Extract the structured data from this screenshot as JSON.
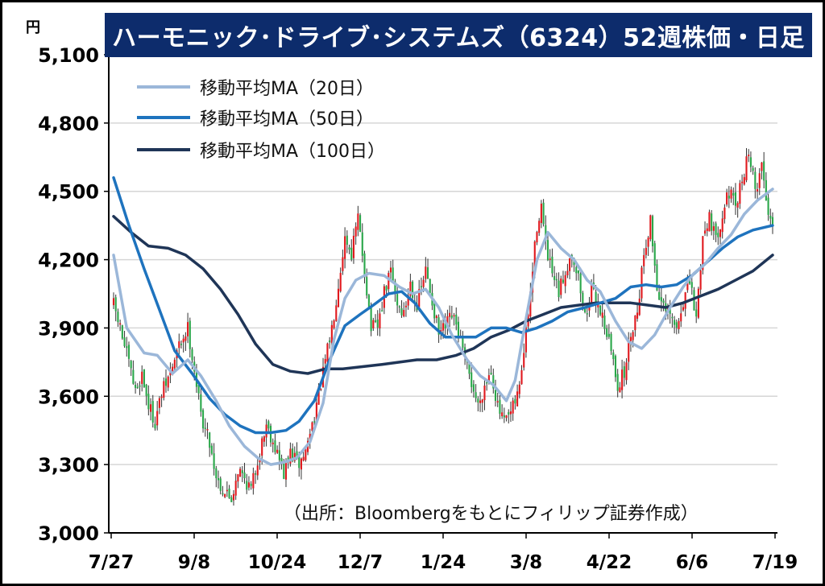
{
  "chart_data": {
    "type": "candlestick",
    "title": "ハーモニック･ドライブ･システムズ（6324）52週株価・日足",
    "unit_label": "円",
    "source_note": "（出所：Bloombergをもとにフィリップ証券作成）",
    "ylim": [
      3000,
      5100
    ],
    "yticks": [
      "3,000",
      "3,300",
      "3,600",
      "3,900",
      "4,200",
      "4,500",
      "4,800",
      "5,100"
    ],
    "ytick_values": [
      3000,
      3300,
      3600,
      3900,
      4200,
      4500,
      4800,
      5100
    ],
    "xticks": [
      "7/27",
      "9/8",
      "10/24",
      "12/7",
      "1/24",
      "3/8",
      "4/22",
      "6/6",
      "7/19"
    ],
    "grid": true,
    "legend_position": "top-left",
    "colors": {
      "up": "#e0191e",
      "down": "#2aa74a",
      "ma20": "#9bb7d9",
      "ma50": "#1e73be",
      "ma100": "#1f3557",
      "title_bg": "#0d2c6c"
    },
    "legend": [
      {
        "key": "ma20",
        "label": "移動平均MA（20日）"
      },
      {
        "key": "ma50",
        "label": "移動平均MA（50日）"
      },
      {
        "key": "ma100",
        "label": "移動平均MA（100日）"
      }
    ],
    "price_path": [
      [
        0,
        4000
      ],
      [
        3,
        3900
      ],
      [
        6,
        3780
      ],
      [
        10,
        3620
      ],
      [
        13,
        3700
      ],
      [
        16,
        3560
      ],
      [
        19,
        3490
      ],
      [
        22,
        3610
      ],
      [
        26,
        3700
      ],
      [
        30,
        3820
      ],
      [
        34,
        3900
      ],
      [
        37,
        3720
      ],
      [
        40,
        3520
      ],
      [
        44,
        3400
      ],
      [
        47,
        3250
      ],
      [
        50,
        3190
      ],
      [
        54,
        3150
      ],
      [
        57,
        3280
      ],
      [
        60,
        3240
      ],
      [
        63,
        3190
      ],
      [
        66,
        3320
      ],
      [
        70,
        3480
      ],
      [
        74,
        3380
      ],
      [
        78,
        3260
      ],
      [
        81,
        3350
      ],
      [
        85,
        3300
      ],
      [
        88,
        3360
      ],
      [
        92,
        3520
      ],
      [
        96,
        3700
      ],
      [
        100,
        3900
      ],
      [
        103,
        4100
      ],
      [
        106,
        4300
      ],
      [
        109,
        4230
      ],
      [
        112,
        4380
      ],
      [
        115,
        4150
      ],
      [
        118,
        3900
      ],
      [
        121,
        3900
      ],
      [
        124,
        4050
      ],
      [
        127,
        4150
      ],
      [
        130,
        4010
      ],
      [
        133,
        3960
      ],
      [
        136,
        4100
      ],
      [
        139,
        4000
      ],
      [
        143,
        4150
      ],
      [
        146,
        4020
      ],
      [
        149,
        3870
      ],
      [
        152,
        3900
      ],
      [
        155,
        3950
      ],
      [
        158,
        3880
      ],
      [
        161,
        3750
      ],
      [
        164,
        3660
      ],
      [
        167,
        3560
      ],
      [
        170,
        3650
      ],
      [
        173,
        3720
      ],
      [
        176,
        3550
      ],
      [
        179,
        3480
      ],
      [
        182,
        3520
      ],
      [
        185,
        3600
      ],
      [
        188,
        3790
      ],
      [
        191,
        4050
      ],
      [
        194,
        4350
      ],
      [
        196,
        4440
      ],
      [
        198,
        4250
      ],
      [
        201,
        4130
      ],
      [
        204,
        4050
      ],
      [
        207,
        4150
      ],
      [
        210,
        4230
      ],
      [
        213,
        4120
      ],
      [
        216,
        3950
      ],
      [
        219,
        4060
      ],
      [
        222,
        4010
      ],
      [
        225,
        3920
      ],
      [
        228,
        3800
      ],
      [
        231,
        3650
      ],
      [
        234,
        3700
      ],
      [
        237,
        3880
      ],
      [
        240,
        3980
      ],
      [
        243,
        4230
      ],
      [
        246,
        4370
      ],
      [
        249,
        4080
      ],
      [
        252,
        3980
      ],
      [
        255,
        3950
      ],
      [
        258,
        3890
      ],
      [
        261,
        4020
      ],
      [
        264,
        4100
      ],
      [
        267,
        3940
      ],
      [
        270,
        4300
      ],
      [
        273,
        4400
      ],
      [
        276,
        4280
      ],
      [
        279,
        4410
      ],
      [
        282,
        4500
      ],
      [
        285,
        4420
      ],
      [
        288,
        4550
      ],
      [
        291,
        4680
      ],
      [
        294,
        4500
      ],
      [
        297,
        4620
      ],
      [
        300,
        4400
      ],
      [
        302,
        4380
      ]
    ],
    "ma20": [
      [
        0,
        4220
      ],
      [
        6,
        3900
      ],
      [
        14,
        3790
      ],
      [
        20,
        3780
      ],
      [
        27,
        3700
      ],
      [
        34,
        3760
      ],
      [
        40,
        3690
      ],
      [
        47,
        3580
      ],
      [
        53,
        3470
      ],
      [
        60,
        3380
      ],
      [
        66,
        3330
      ],
      [
        72,
        3300
      ],
      [
        78,
        3310
      ],
      [
        84,
        3330
      ],
      [
        90,
        3400
      ],
      [
        96,
        3570
      ],
      [
        101,
        3850
      ],
      [
        106,
        4030
      ],
      [
        111,
        4110
      ],
      [
        117,
        4140
      ],
      [
        124,
        4130
      ],
      [
        131,
        4080
      ],
      [
        137,
        4050
      ],
      [
        143,
        4070
      ],
      [
        149,
        3990
      ],
      [
        155,
        3870
      ],
      [
        162,
        3760
      ],
      [
        168,
        3690
      ],
      [
        174,
        3650
      ],
      [
        180,
        3580
      ],
      [
        184,
        3670
      ],
      [
        189,
        3940
      ],
      [
        194,
        4200
      ],
      [
        199,
        4320
      ],
      [
        205,
        4250
      ],
      [
        211,
        4200
      ],
      [
        217,
        4110
      ],
      [
        223,
        4060
      ],
      [
        230,
        3930
      ],
      [
        236,
        3840
      ],
      [
        242,
        3810
      ],
      [
        248,
        3870
      ],
      [
        255,
        3990
      ],
      [
        261,
        4080
      ],
      [
        266,
        4140
      ],
      [
        271,
        4180
      ],
      [
        277,
        4250
      ],
      [
        283,
        4310
      ],
      [
        289,
        4400
      ],
      [
        295,
        4460
      ],
      [
        302,
        4510
      ]
    ],
    "ma50": [
      [
        0,
        4560
      ],
      [
        7,
        4350
      ],
      [
        14,
        4160
      ],
      [
        21,
        3980
      ],
      [
        28,
        3800
      ],
      [
        36,
        3700
      ],
      [
        44,
        3590
      ],
      [
        51,
        3520
      ],
      [
        58,
        3470
      ],
      [
        65,
        3440
      ],
      [
        72,
        3440
      ],
      [
        79,
        3450
      ],
      [
        85,
        3490
      ],
      [
        92,
        3580
      ],
      [
        99,
        3760
      ],
      [
        106,
        3910
      ],
      [
        113,
        3960
      ],
      [
        119,
        4000
      ],
      [
        126,
        4050
      ],
      [
        132,
        4060
      ],
      [
        138,
        4010
      ],
      [
        145,
        3920
      ],
      [
        152,
        3860
      ],
      [
        159,
        3860
      ],
      [
        166,
        3860
      ],
      [
        173,
        3900
      ],
      [
        180,
        3900
      ],
      [
        187,
        3880
      ],
      [
        194,
        3900
      ],
      [
        201,
        3930
      ],
      [
        208,
        3970
      ],
      [
        216,
        3990
      ],
      [
        223,
        4010
      ],
      [
        230,
        4030
      ],
      [
        237,
        4080
      ],
      [
        244,
        4090
      ],
      [
        251,
        4080
      ],
      [
        258,
        4090
      ],
      [
        265,
        4130
      ],
      [
        272,
        4190
      ],
      [
        279,
        4250
      ],
      [
        286,
        4300
      ],
      [
        293,
        4330
      ],
      [
        302,
        4350
      ]
    ],
    "ma100": [
      [
        0,
        4390
      ],
      [
        8,
        4320
      ],
      [
        16,
        4260
      ],
      [
        25,
        4250
      ],
      [
        33,
        4220
      ],
      [
        41,
        4160
      ],
      [
        49,
        4070
      ],
      [
        57,
        3960
      ],
      [
        65,
        3830
      ],
      [
        73,
        3740
      ],
      [
        81,
        3710
      ],
      [
        89,
        3700
      ],
      [
        97,
        3720
      ],
      [
        105,
        3720
      ],
      [
        114,
        3730
      ],
      [
        123,
        3740
      ],
      [
        131,
        3750
      ],
      [
        139,
        3760
      ],
      [
        148,
        3760
      ],
      [
        157,
        3780
      ],
      [
        165,
        3810
      ],
      [
        173,
        3860
      ],
      [
        181,
        3890
      ],
      [
        189,
        3930
      ],
      [
        197,
        3960
      ],
      [
        205,
        3990
      ],
      [
        213,
        4000
      ],
      [
        221,
        4010
      ],
      [
        229,
        4010
      ],
      [
        237,
        4010
      ],
      [
        245,
        4000
      ],
      [
        253,
        3990
      ],
      [
        261,
        4010
      ],
      [
        269,
        4040
      ],
      [
        277,
        4070
      ],
      [
        285,
        4110
      ],
      [
        293,
        4150
      ],
      [
        302,
        4220
      ]
    ]
  }
}
